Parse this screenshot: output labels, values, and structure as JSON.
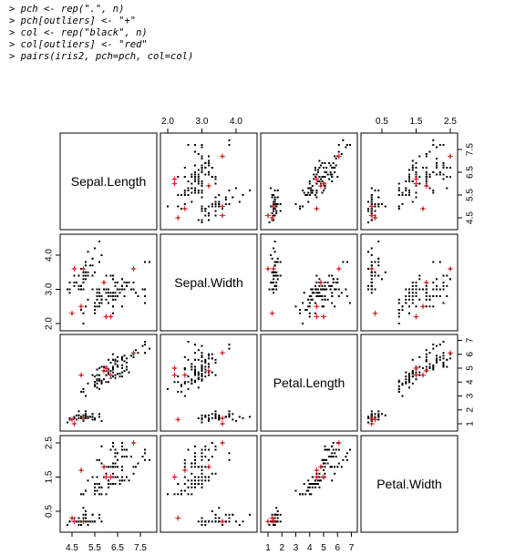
{
  "code": {
    "prompt": ">",
    "lines": [
      "pch <- rep(\".\", n)",
      "pch[outliers] <- \"+\"",
      "col <- rep(\"black\", n)",
      "col[outliers] <- \"red\"",
      "pairs(iris2, pch=pch, col=col)"
    ]
  },
  "chart_data": {
    "type": "scatter",
    "kind": "pairs-matrix",
    "variables": [
      "Sepal.Length",
      "Sepal.Width",
      "Petal.Length",
      "Petal.Width"
    ],
    "ticks": {
      "Sepal.Length": [
        "4.5",
        "5.5",
        "6.5",
        "7.5"
      ],
      "Sepal.Width": [
        "2.0",
        "3.0",
        "4.0"
      ],
      "Petal.Length": [
        "1",
        "2",
        "3",
        "4",
        "5",
        "6",
        "7"
      ],
      "Petal.Width": [
        "0.5",
        "1.5",
        "2.5"
      ]
    },
    "tick_values": {
      "Sepal.Length": [
        4.5,
        5.5,
        6.5,
        7.5
      ],
      "Sepal.Width": [
        2.0,
        3.0,
        4.0
      ],
      "Petal.Length": [
        1,
        2,
        3,
        4,
        5,
        6,
        7
      ],
      "Petal.Width": [
        0.5,
        1.5,
        2.5
      ]
    },
    "ranges": {
      "Sepal.Length": [
        4.3,
        7.9
      ],
      "Sepal.Width": [
        2.0,
        4.4
      ],
      "Petal.Length": [
        1.0,
        6.9
      ],
      "Petal.Width": [
        0.1,
        2.5
      ]
    },
    "marker_normal": ".",
    "marker_outlier": "+",
    "color_normal": "#000000",
    "color_outlier": "#e8212b",
    "points": [
      [
        5.1,
        3.5,
        1.4,
        0.2
      ],
      [
        4.9,
        3.0,
        1.4,
        0.2
      ],
      [
        4.7,
        3.2,
        1.3,
        0.2
      ],
      [
        4.6,
        3.1,
        1.5,
        0.2
      ],
      [
        5.0,
        3.6,
        1.4,
        0.2
      ],
      [
        5.4,
        3.9,
        1.7,
        0.4
      ],
      [
        4.6,
        3.4,
        1.4,
        0.3
      ],
      [
        5.0,
        3.4,
        1.5,
        0.2
      ],
      [
        4.4,
        2.9,
        1.4,
        0.2
      ],
      [
        4.9,
        3.1,
        1.5,
        0.1
      ],
      [
        5.4,
        3.7,
        1.5,
        0.2
      ],
      [
        4.8,
        3.4,
        1.6,
        0.2
      ],
      [
        4.8,
        3.0,
        1.4,
        0.1
      ],
      [
        4.3,
        3.0,
        1.1,
        0.1
      ],
      [
        5.8,
        4.0,
        1.2,
        0.2
      ],
      [
        5.7,
        4.4,
        1.5,
        0.4
      ],
      [
        5.4,
        3.9,
        1.3,
        0.4
      ],
      [
        5.1,
        3.5,
        1.4,
        0.3
      ],
      [
        5.7,
        3.8,
        1.7,
        0.3
      ],
      [
        5.1,
        3.8,
        1.5,
        0.3
      ],
      [
        5.4,
        3.4,
        1.7,
        0.2
      ],
      [
        5.1,
        3.7,
        1.5,
        0.4
      ],
      [
        4.6,
        3.6,
        1.0,
        0.2
      ],
      [
        5.1,
        3.3,
        1.7,
        0.5
      ],
      [
        4.8,
        3.4,
        1.9,
        0.2
      ],
      [
        5.0,
        3.0,
        1.6,
        0.2
      ],
      [
        5.0,
        3.4,
        1.6,
        0.4
      ],
      [
        5.2,
        3.5,
        1.5,
        0.2
      ],
      [
        5.2,
        3.4,
        1.4,
        0.2
      ],
      [
        4.7,
        3.2,
        1.6,
        0.2
      ],
      [
        4.8,
        3.1,
        1.6,
        0.2
      ],
      [
        5.4,
        3.4,
        1.5,
        0.4
      ],
      [
        5.2,
        4.1,
        1.5,
        0.1
      ],
      [
        5.5,
        4.2,
        1.4,
        0.2
      ],
      [
        4.9,
        3.1,
        1.5,
        0.2
      ],
      [
        5.0,
        3.2,
        1.2,
        0.2
      ],
      [
        5.5,
        3.5,
        1.3,
        0.2
      ],
      [
        4.9,
        3.6,
        1.4,
        0.1
      ],
      [
        4.4,
        3.0,
        1.3,
        0.2
      ],
      [
        5.1,
        3.4,
        1.5,
        0.2
      ],
      [
        5.0,
        3.5,
        1.3,
        0.3
      ],
      [
        4.5,
        2.3,
        1.3,
        0.3
      ],
      [
        4.4,
        3.2,
        1.3,
        0.2
      ],
      [
        5.0,
        3.5,
        1.6,
        0.6
      ],
      [
        5.1,
        3.8,
        1.9,
        0.4
      ],
      [
        4.8,
        3.0,
        1.4,
        0.3
      ],
      [
        5.1,
        3.8,
        1.6,
        0.2
      ],
      [
        4.6,
        3.2,
        1.4,
        0.2
      ],
      [
        5.3,
        3.7,
        1.5,
        0.2
      ],
      [
        5.0,
        3.3,
        1.4,
        0.2
      ],
      [
        7.0,
        3.2,
        4.7,
        1.4
      ],
      [
        6.4,
        3.2,
        4.5,
        1.5
      ],
      [
        6.9,
        3.1,
        4.9,
        1.5
      ],
      [
        5.5,
        2.3,
        4.0,
        1.3
      ],
      [
        6.5,
        2.8,
        4.6,
        1.5
      ],
      [
        5.7,
        2.8,
        4.5,
        1.3
      ],
      [
        6.3,
        3.3,
        4.7,
        1.6
      ],
      [
        4.9,
        2.4,
        3.3,
        1.0
      ],
      [
        6.6,
        2.9,
        4.6,
        1.3
      ],
      [
        5.2,
        2.7,
        3.9,
        1.4
      ],
      [
        5.0,
        2.0,
        3.5,
        1.0
      ],
      [
        5.9,
        3.0,
        4.2,
        1.5
      ],
      [
        6.0,
        2.2,
        4.0,
        1.0
      ],
      [
        6.1,
        2.9,
        4.7,
        1.4
      ],
      [
        5.6,
        2.9,
        3.6,
        1.3
      ],
      [
        6.7,
        3.1,
        4.4,
        1.4
      ],
      [
        5.6,
        3.0,
        4.5,
        1.5
      ],
      [
        5.8,
        2.7,
        4.1,
        1.0
      ],
      [
        6.2,
        2.2,
        4.5,
        1.5
      ],
      [
        5.6,
        2.5,
        3.9,
        1.1
      ],
      [
        5.9,
        3.2,
        4.8,
        1.8
      ],
      [
        6.1,
        2.8,
        4.0,
        1.3
      ],
      [
        6.3,
        2.5,
        4.9,
        1.5
      ],
      [
        6.1,
        2.8,
        4.7,
        1.2
      ],
      [
        6.4,
        2.9,
        4.3,
        1.3
      ],
      [
        6.6,
        3.0,
        4.4,
        1.4
      ],
      [
        6.8,
        2.8,
        4.8,
        1.4
      ],
      [
        6.7,
        3.0,
        5.0,
        1.7
      ],
      [
        6.0,
        2.9,
        4.5,
        1.5
      ],
      [
        5.7,
        2.6,
        3.5,
        1.0
      ],
      [
        5.5,
        2.4,
        3.8,
        1.1
      ],
      [
        5.5,
        2.4,
        3.7,
        1.0
      ],
      [
        5.8,
        2.7,
        3.9,
        1.2
      ],
      [
        6.0,
        2.7,
        5.1,
        1.6
      ],
      [
        5.4,
        3.0,
        4.5,
        1.5
      ],
      [
        6.0,
        3.4,
        4.5,
        1.6
      ],
      [
        6.7,
        3.1,
        4.7,
        1.5
      ],
      [
        6.3,
        2.3,
        4.4,
        1.3
      ],
      [
        5.6,
        3.0,
        4.1,
        1.3
      ],
      [
        5.5,
        2.5,
        4.0,
        1.3
      ],
      [
        5.5,
        2.6,
        4.4,
        1.2
      ],
      [
        6.1,
        3.0,
        4.6,
        1.4
      ],
      [
        5.8,
        2.6,
        4.0,
        1.2
      ],
      [
        5.0,
        2.3,
        3.3,
        1.0
      ],
      [
        5.6,
        2.7,
        4.2,
        1.3
      ],
      [
        5.7,
        3.0,
        4.2,
        1.2
      ],
      [
        5.7,
        2.9,
        4.2,
        1.3
      ],
      [
        6.2,
        2.9,
        4.3,
        1.3
      ],
      [
        5.1,
        2.5,
        3.0,
        1.1
      ],
      [
        5.7,
        2.8,
        4.1,
        1.3
      ],
      [
        6.3,
        3.3,
        6.0,
        2.5
      ],
      [
        5.8,
        2.7,
        5.1,
        1.9
      ],
      [
        7.1,
        3.0,
        5.9,
        2.1
      ],
      [
        6.3,
        2.9,
        5.6,
        1.8
      ],
      [
        6.5,
        3.0,
        5.8,
        2.2
      ],
      [
        7.6,
        3.0,
        6.6,
        2.1
      ],
      [
        4.9,
        2.5,
        4.5,
        1.7
      ],
      [
        7.3,
        2.9,
        6.3,
        1.8
      ],
      [
        6.7,
        2.5,
        5.8,
        1.8
      ],
      [
        7.2,
        3.6,
        6.1,
        2.5
      ],
      [
        6.5,
        3.2,
        5.1,
        2.0
      ],
      [
        6.4,
        2.7,
        5.3,
        1.9
      ],
      [
        6.8,
        3.0,
        5.5,
        2.1
      ],
      [
        5.7,
        2.5,
        5.0,
        2.0
      ],
      [
        5.8,
        2.8,
        5.1,
        2.4
      ],
      [
        6.4,
        3.2,
        5.3,
        2.3
      ],
      [
        6.5,
        3.0,
        5.5,
        1.8
      ],
      [
        7.7,
        3.8,
        6.7,
        2.2
      ],
      [
        7.7,
        2.6,
        6.9,
        2.3
      ],
      [
        6.0,
        2.2,
        5.0,
        1.5
      ],
      [
        6.9,
        3.2,
        5.7,
        2.3
      ],
      [
        5.6,
        2.8,
        4.9,
        2.0
      ],
      [
        7.7,
        2.8,
        6.7,
        2.0
      ],
      [
        6.3,
        2.7,
        4.9,
        1.8
      ],
      [
        6.7,
        3.3,
        5.7,
        2.1
      ],
      [
        7.2,
        3.2,
        6.0,
        1.8
      ],
      [
        6.2,
        2.8,
        4.8,
        1.8
      ],
      [
        6.1,
        3.0,
        4.9,
        1.8
      ],
      [
        6.4,
        2.8,
        5.6,
        2.1
      ],
      [
        7.2,
        3.0,
        5.8,
        1.6
      ],
      [
        7.4,
        2.8,
        6.1,
        1.9
      ],
      [
        7.9,
        3.8,
        6.4,
        2.0
      ],
      [
        6.4,
        2.8,
        5.6,
        2.2
      ],
      [
        6.3,
        2.8,
        5.1,
        1.5
      ],
      [
        6.1,
        2.6,
        5.6,
        1.4
      ],
      [
        7.7,
        3.0,
        6.1,
        2.3
      ],
      [
        6.3,
        3.4,
        5.6,
        2.4
      ],
      [
        6.4,
        3.1,
        5.5,
        1.8
      ],
      [
        6.0,
        3.0,
        4.8,
        1.8
      ],
      [
        6.9,
        3.1,
        5.4,
        2.1
      ],
      [
        6.7,
        3.1,
        5.6,
        2.4
      ],
      [
        6.9,
        3.1,
        5.1,
        2.3
      ],
      [
        5.8,
        2.7,
        5.1,
        1.9
      ],
      [
        6.8,
        3.2,
        5.9,
        2.3
      ],
      [
        6.7,
        3.3,
        5.7,
        2.5
      ],
      [
        6.7,
        3.0,
        5.2,
        2.3
      ],
      [
        6.3,
        2.5,
        5.0,
        1.9
      ],
      [
        6.5,
        3.0,
        5.2,
        2.0
      ],
      [
        6.2,
        3.4,
        5.4,
        2.3
      ],
      [
        5.9,
        3.0,
        5.1,
        1.8
      ]
    ],
    "outliers": [
      [
        4.5,
        2.3,
        1.3,
        0.3
      ],
      [
        5.0,
        3.6,
        1.4,
        0.2
      ],
      [
        4.6,
        3.6,
        1.0,
        0.2
      ],
      [
        5.9,
        3.2,
        4.8,
        1.8
      ],
      [
        6.0,
        2.2,
        5.0,
        1.5
      ],
      [
        7.2,
        3.6,
        6.1,
        2.5
      ],
      [
        4.9,
        2.5,
        4.5,
        1.7
      ],
      [
        6.2,
        2.2,
        4.5,
        1.5
      ]
    ]
  }
}
